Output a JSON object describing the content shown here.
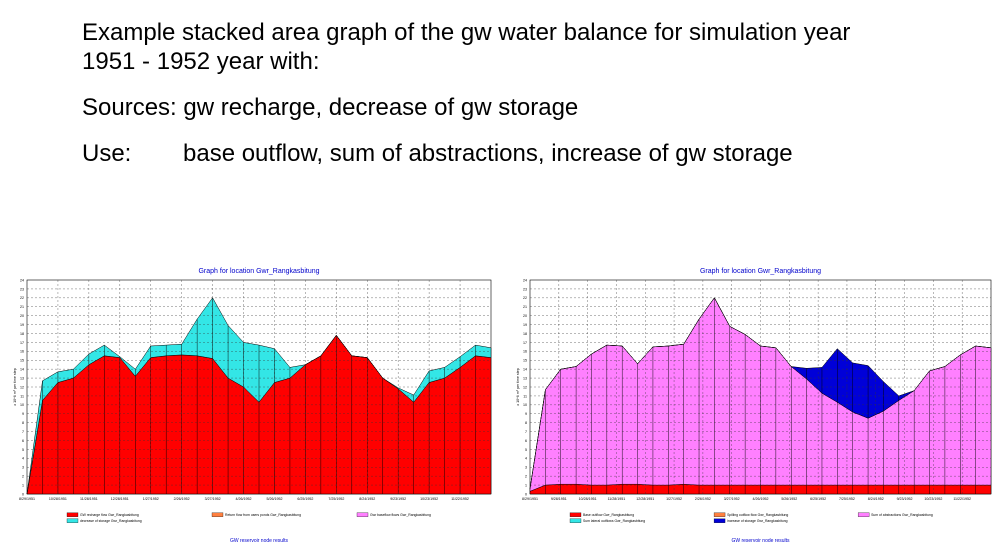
{
  "slide": {
    "title_line1": "Example stacked area graph of the gw water balance for simulation year",
    "title_line2": "1951 - 1952 year with:",
    "sources": "Sources: gw recharge, decrease of  gw storage",
    "use_label": "Use:",
    "use_text": "base outflow, sum of abstractions, increase of gw storage"
  },
  "colors": {
    "red": "#ff0000",
    "cyan": "#33e6e6",
    "pink": "#ff80ff",
    "blue": "#0000d8",
    "orange": "#ff8040",
    "title_blue": "#0000cc"
  },
  "chart_data": [
    {
      "type": "area",
      "title": "Graph for location Gwr_Rangkasbitung",
      "ylabel": "x 10^6 m³ per time step",
      "ylim": [
        0,
        24
      ],
      "yticks": [
        0,
        1,
        2,
        3,
        4,
        5,
        6,
        7,
        8,
        9,
        10,
        11,
        12,
        13,
        14,
        15,
        16,
        17,
        18,
        19,
        20,
        21,
        22,
        23,
        24
      ],
      "xticks": [
        "8/29/1951",
        "10/28/1951",
        "11/28/1951",
        "12/28/1951",
        "1/27/1952",
        "2/26/1952",
        "3/27/1952",
        "4/26/1952",
        "5/26/1952",
        "6/25/1952",
        "7/25/1952",
        "8/24/1952",
        "9/23/1952",
        "10/23/1952",
        "11/22/1952"
      ],
      "grid": true,
      "stacked": true,
      "series": [
        {
          "name": "GW recharge flow Gwr_Rangkasbitung",
          "color": "red",
          "values": [
            0,
            10.5,
            12.5,
            13,
            14.5,
            15.5,
            15.3,
            13.2,
            15.3,
            15.5,
            15.6,
            15.5,
            15.2,
            13,
            12,
            10.3,
            12.5,
            13,
            14.5,
            15.5,
            17.8,
            15.5,
            15.3,
            13,
            11.8,
            10.3,
            12.5,
            13,
            14.2,
            15.5,
            15.3
          ]
        },
        {
          "name": "decrease of storage Gwr_Rangkasbitung",
          "color": "cyan",
          "values": [
            0,
            2.2,
            1.2,
            1.0,
            1.2,
            1.2,
            0.1,
            0.8,
            1.3,
            1.2,
            1.2,
            4.1,
            6.8,
            5.9,
            5.0,
            6.4,
            3.8,
            1.2,
            0,
            0,
            0,
            0,
            0,
            0,
            0.1,
            0.8,
            1.3,
            1.2,
            1.2,
            1.2,
            1.1
          ]
        }
      ],
      "legend": [
        {
          "label": "GW recharge flow Gwr_Rangkasbitung",
          "color": "red"
        },
        {
          "label": "Return flow from users ponds Gwr_Rangkasbitung",
          "color": "orange"
        },
        {
          "label": "Gwr baseflow flows Gwr_Rangkasbitung",
          "color": "pink"
        },
        {
          "label": "decrease of storage Gwr_Rangkasbitung",
          "color": "cyan"
        }
      ],
      "footer": "GW reservoir node results"
    },
    {
      "type": "area",
      "title": "Graph for location Gwr_Rangkasbitung",
      "ylabel": "x 10^6 m³ per time step",
      "ylim": [
        0,
        24
      ],
      "yticks": [
        0,
        1,
        2,
        3,
        4,
        5,
        6,
        7,
        8,
        9,
        10,
        11,
        12,
        13,
        14,
        15,
        16,
        17,
        18,
        19,
        20,
        21,
        22,
        23,
        24
      ],
      "xticks": [
        "8/29/1951",
        "9/28/1951",
        "10/28/1951",
        "11/28/1951",
        "12/28/1951",
        "1/27/1952",
        "2/26/1952",
        "3/27/1952",
        "4/26/1952",
        "5/26/1952",
        "6/25/1952",
        "7/25/1952",
        "8/24/1952",
        "9/23/1952",
        "10/23/1952",
        "11/22/1952"
      ],
      "grid": true,
      "stacked": true,
      "series": [
        {
          "name": "Base outflow Gwr_Rangkasbitung",
          "color": "red",
          "values": [
            0.3,
            1.0,
            1.1,
            1.1,
            1.0,
            1.0,
            1.1,
            1.1,
            1.0,
            1.0,
            1.1,
            1.0,
            1.0,
            1.0,
            1.0,
            1.0,
            1.0,
            1.0,
            1.0,
            1.0,
            1.0,
            1.0,
            1.0,
            1.0,
            1.0,
            1.0,
            1.0,
            1.0,
            1.0,
            1.0,
            1.0
          ]
        },
        {
          "name": "Sum of abstractions Gwr_Rangkasbitung",
          "color": "pink",
          "values": [
            0.3,
            10.7,
            12.9,
            13.2,
            14.7,
            15.7,
            15.5,
            13.5,
            15.5,
            15.6,
            15.7,
            18.6,
            21.0,
            17.8,
            16.9,
            15.6,
            15.4,
            13.3,
            11.9,
            10.3,
            9.3,
            8.2,
            7.5,
            8.3,
            9.5,
            10.6,
            12.8,
            13.3,
            14.6,
            15.6,
            15.4
          ]
        },
        {
          "name": "increase of storage Gwr_Rangkasbitung",
          "color": "blue",
          "values": [
            0,
            0,
            0,
            0,
            0,
            0,
            0,
            0,
            0,
            0,
            0,
            0,
            0,
            0,
            0,
            0,
            0,
            0,
            1.2,
            2.9,
            6.0,
            5.5,
            5.9,
            3.3,
            0.5,
            0,
            0,
            0,
            0,
            0,
            0
          ]
        }
      ],
      "legend": [
        {
          "label": "Base outflow Gwr_Rangkasbitung",
          "color": "red"
        },
        {
          "label": "Spilling outflow flow Gwr_Rangkasbitung",
          "color": "orange"
        },
        {
          "label": "Sum of abstractions Gwr_Rangkasbitung",
          "color": "pink"
        },
        {
          "label": "Sum lateral outflows Gwr_Rangkasbitung",
          "color": "cyan"
        },
        {
          "label": "increase of storage Gwr_Rangkasbitung",
          "color": "blue"
        }
      ],
      "footer": "GW reservoir node results"
    }
  ]
}
